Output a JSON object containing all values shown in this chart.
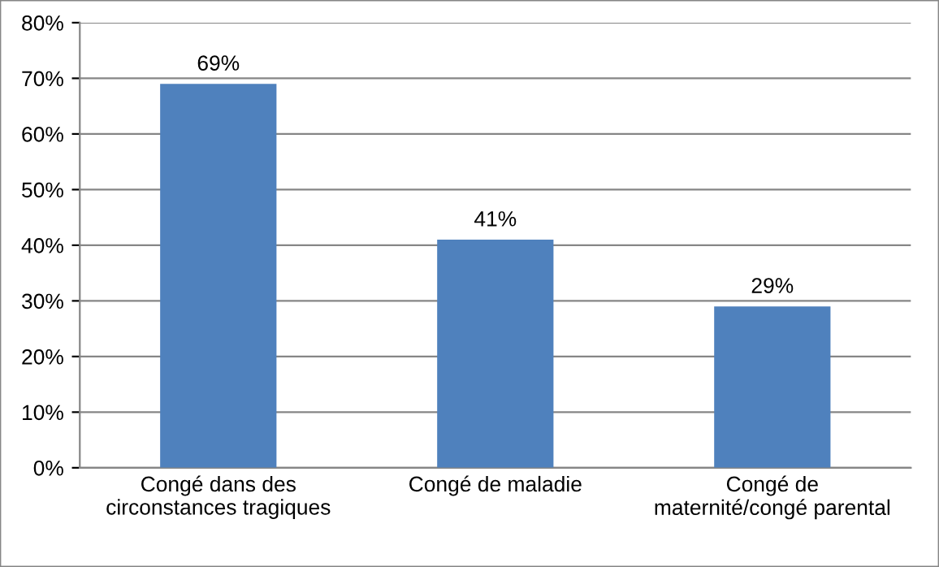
{
  "chart_data": {
    "type": "bar",
    "categories": [
      "Congé dans des\ncirconstances tragiques",
      "Congé de maladie",
      "Congé de\nmaternité/congé parental"
    ],
    "values": [
      69,
      41,
      29
    ],
    "value_labels": [
      "69%",
      "41%",
      "29%"
    ],
    "color": "#4f81bd",
    "ylim": [
      0,
      80
    ],
    "yticks": [
      {
        "value": 0,
        "label": "0%"
      },
      {
        "value": 10,
        "label": "10%"
      },
      {
        "value": 20,
        "label": "20%"
      },
      {
        "value": 30,
        "label": "30%"
      },
      {
        "value": 40,
        "label": "40%"
      },
      {
        "value": 50,
        "label": "50%"
      },
      {
        "value": 60,
        "label": "60%"
      },
      {
        "value": 70,
        "label": "70%"
      },
      {
        "value": 80,
        "label": "80%"
      }
    ],
    "grid": "y",
    "legend": false
  }
}
